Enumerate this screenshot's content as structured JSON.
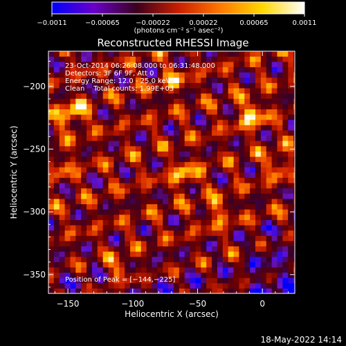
{
  "chart_data": {
    "type": "heatmap",
    "title": "Reconstructed RHESSI Image",
    "xlabel": "Heliocentric X (arcsec)",
    "ylabel": "Heliocentric Y (arcsec)",
    "xlim": [
      -165,
      25
    ],
    "ylim": [
      -365,
      -172
    ],
    "x_ticks": [
      -150,
      -100,
      -50,
      0
    ],
    "x_tick_labels": [
      "−150",
      "−100",
      "−50",
      "0"
    ],
    "y_ticks": [
      -200,
      -250,
      -300,
      -350
    ],
    "y_tick_labels": [
      "−200",
      "−250",
      "−300",
      "−350"
    ],
    "colorbar": {
      "range": [
        -0.0011,
        0.0011
      ],
      "tick_labels": [
        "−0.0011",
        "−0.00065",
        "−0.00022",
        "0.00022",
        "0.00065",
        "0.0011"
      ],
      "units": "(photons cm⁻² s⁻¹ asec⁻²)",
      "colors": [
        "#0000ff",
        "#6a00c8",
        "#3a0020",
        "#c81e00",
        "#ff7800",
        "#ffd700",
        "#ffffff"
      ]
    },
    "annotations": [
      "23-Oct-2014 06:26:08.000 to 06:31:48.000",
      "Detectors: 3F 6F 9F, Att 0",
      "Energy Range: 12.0 - 25.0 keV",
      "Clean    Total counts: 1.99E+03"
    ],
    "peak_label": "Position of Peak = [−144,−225]",
    "peak_position": [
      -144,
      -225
    ],
    "hot_spots": [
      {
        "x": -147,
        "y": -222,
        "value": 1.0
      },
      {
        "x": -8,
        "y": -222,
        "value": 0.95
      },
      {
        "x": -68,
        "y": -195,
        "value": 0.55
      },
      {
        "x": -60,
        "y": -270,
        "value": 0.75
      },
      {
        "x": -35,
        "y": -300,
        "value": 0.6
      },
      {
        "x": -110,
        "y": -345,
        "value": 0.7
      },
      {
        "x": -155,
        "y": -262,
        "value": 0.45
      },
      {
        "x": 12,
        "y": -262,
        "value": 0.6
      }
    ],
    "grid": false
  },
  "footer": {
    "timestamp": "18-May-2022 14:14"
  }
}
